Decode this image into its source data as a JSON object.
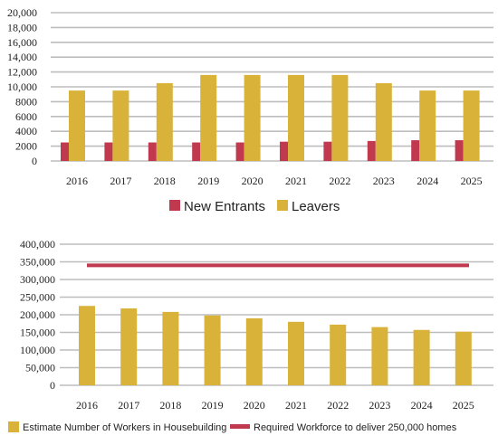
{
  "chart_data": [
    {
      "type": "bar",
      "categories": [
        "2016",
        "2017",
        "2018",
        "2019",
        "2020",
        "2021",
        "2022",
        "2023",
        "2024",
        "2025"
      ],
      "series": [
        {
          "name": "New Entrants",
          "color": "#c0394f",
          "values": [
            2500,
            2500,
            2500,
            2500,
            2500,
            2600,
            2600,
            2700,
            2800,
            2800
          ]
        },
        {
          "name": "Leavers",
          "color": "#d9b23a",
          "values": [
            9500,
            9500,
            10500,
            11600,
            11600,
            11600,
            11600,
            10500,
            9500,
            9500
          ]
        }
      ],
      "yticks": [
        "20,000",
        "18,000",
        "16,000",
        "14,000",
        "12,000",
        "10,000",
        "8000",
        "6000",
        "4000",
        "2000",
        "0"
      ],
      "ylim": [
        0,
        20000
      ],
      "grid": true,
      "legend": "bottom-center"
    },
    {
      "type": "bar",
      "categories": [
        "2016",
        "2017",
        "2018",
        "2019",
        "2020",
        "2021",
        "2022",
        "2023",
        "2024",
        "2025"
      ],
      "series": [
        {
          "name": "Estimate Number of Workers in Housebuilding",
          "color": "#d9b23a",
          "values": [
            225000,
            218000,
            208000,
            198000,
            190000,
            180000,
            172000,
            165000,
            157000,
            152000
          ]
        },
        {
          "name": "Required Workforce to deliver 250,000 homes",
          "color": "#c0394f",
          "line_value": 340000
        }
      ],
      "yticks": [
        "400,000",
        "350,000",
        "300,000",
        "250,000",
        "200,000",
        "150,000",
        "100,000",
        "50,000",
        "0"
      ],
      "ylim": [
        0,
        400000
      ],
      "grid": true,
      "legend": "bottom"
    }
  ]
}
